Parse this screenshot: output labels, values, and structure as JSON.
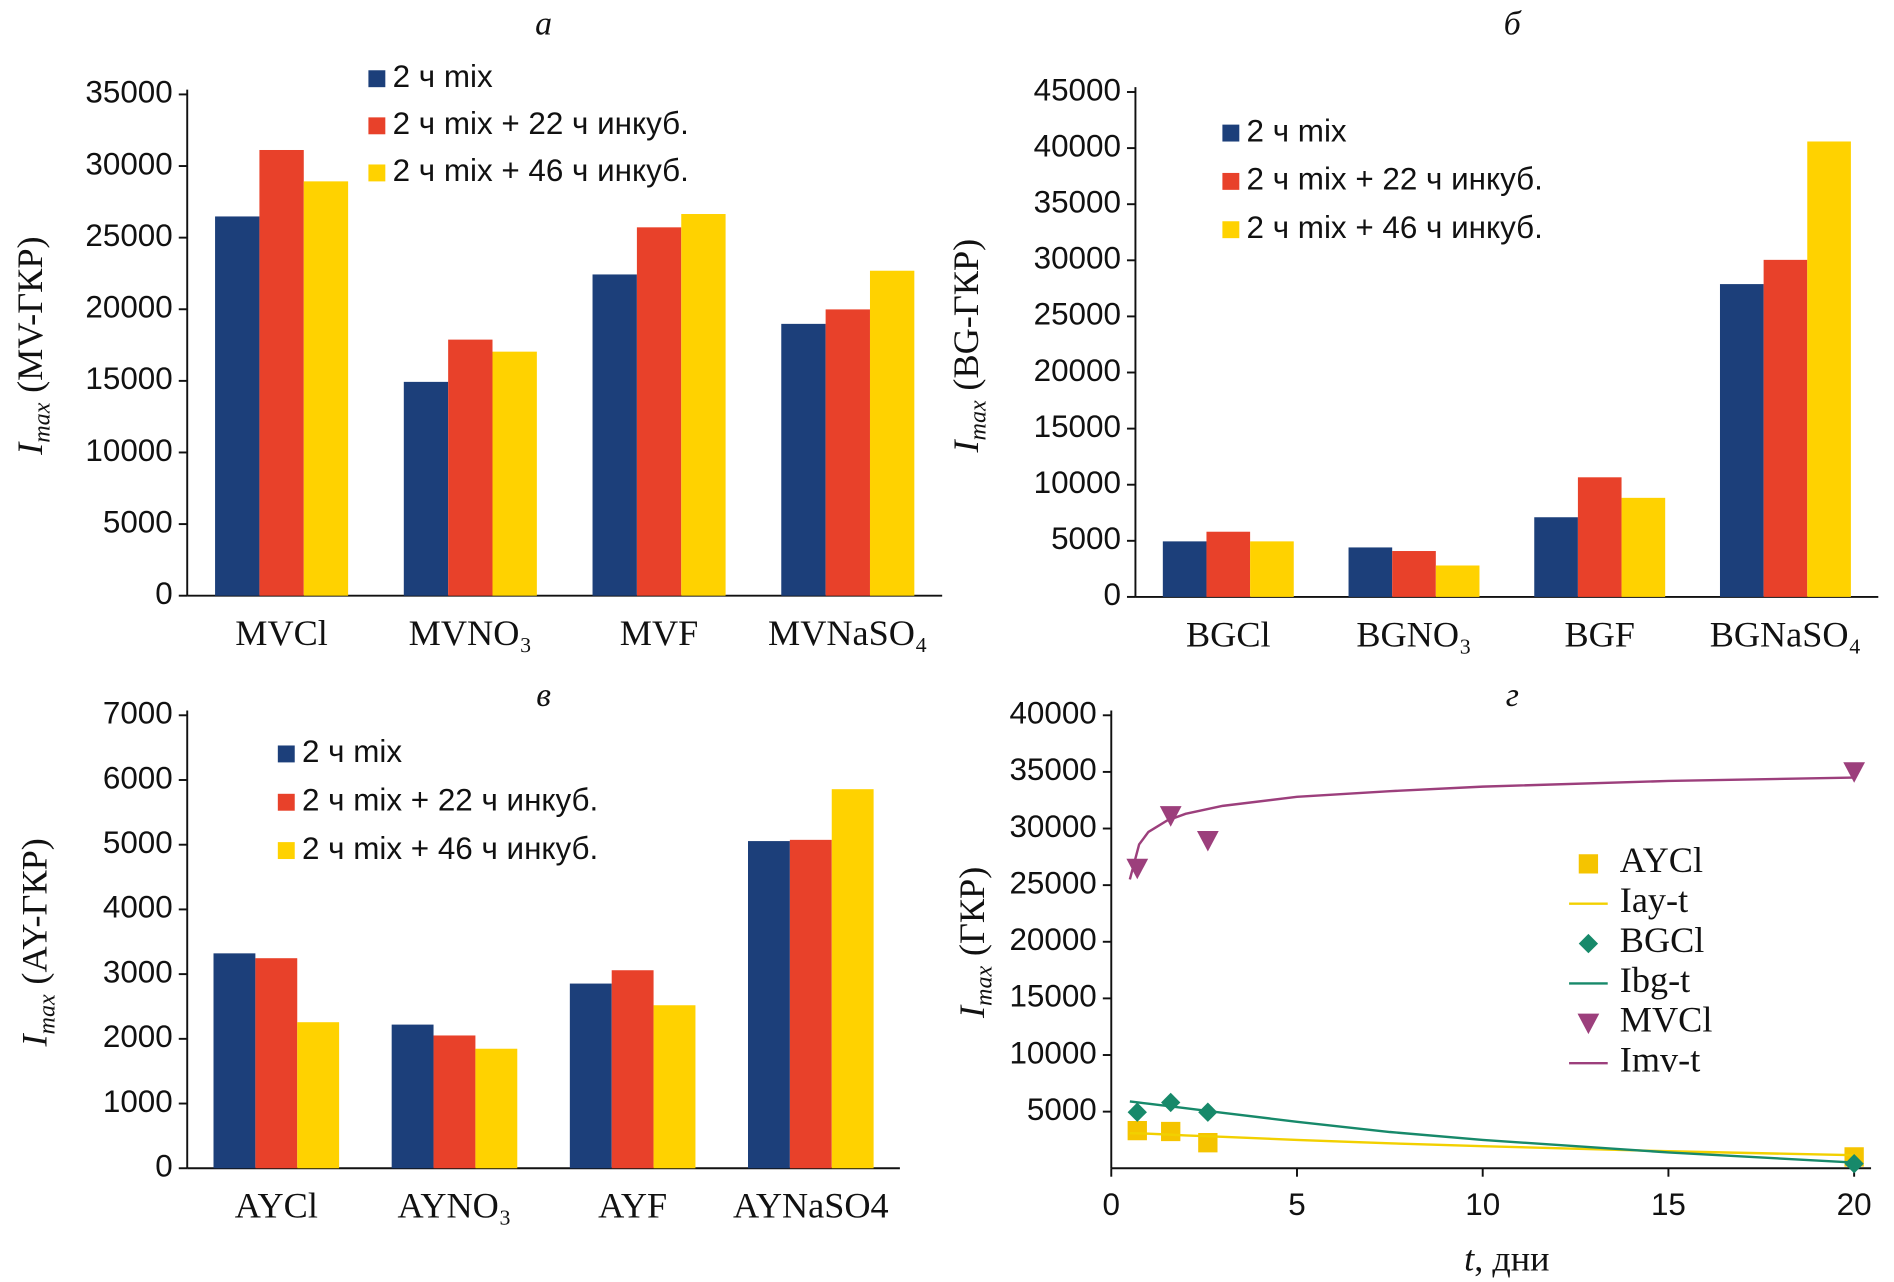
{
  "chart_data": [
    {
      "type": "bar",
      "title": "а",
      "ylabel": {
        "symbol": "I",
        "subscript": "max",
        "text": "(MV-ГКР)"
      },
      "categories": [
        "MVCl",
        "MVNO₃",
        "MVF",
        "MVNaSO₄"
      ],
      "series": [
        {
          "name": "2 ч mix",
          "color": "#1c3f7a",
          "values": [
            26480,
            14930,
            22430,
            18980
          ]
        },
        {
          "name": "2 ч mix + 22 ч инкуб.",
          "color": "#e8412a",
          "values": [
            31120,
            17880,
            25720,
            19990
          ]
        },
        {
          "name": "2 ч mix + 46 ч инкуб.",
          "color": "#ffd200",
          "values": [
            28930,
            17040,
            26650,
            22690
          ]
        }
      ],
      "ylim": [
        0,
        35000
      ],
      "yticks": [
        0,
        5000,
        10000,
        15000,
        20000,
        25000,
        30000,
        35000
      ]
    },
    {
      "type": "bar",
      "title": "б",
      "ylabel": {
        "symbol": "I",
        "subscript": "max",
        "text": "(BG-ГКР)"
      },
      "categories": [
        "BGCl",
        "BGNO₃",
        "BGF",
        "BGNaSO₄"
      ],
      "series": [
        {
          "name": "2 ч mix",
          "color": "#1c3f7a",
          "values": [
            4950,
            4410,
            7100,
            27880
          ]
        },
        {
          "name": "2 ч mix + 22 ч инкуб.",
          "color": "#e8412a",
          "values": [
            5810,
            4090,
            10660,
            30040
          ]
        },
        {
          "name": "2 ч mix + 46 ч инкуб.",
          "color": "#ffd200",
          "values": [
            4950,
            2800,
            8830,
            40590
          ]
        }
      ],
      "ylim": [
        0,
        45000
      ],
      "yticks": [
        0,
        5000,
        10000,
        15000,
        20000,
        25000,
        30000,
        35000,
        40000,
        45000
      ]
    },
    {
      "type": "bar",
      "title": "в",
      "ylabel": {
        "symbol": "I",
        "subscript": "max",
        "text": "(AY-ГКР)"
      },
      "categories": [
        "AYCl",
        "AYNO₃",
        "AYF",
        "AYNaSO4"
      ],
      "series": [
        {
          "name": "2 ч mix",
          "color": "#1c3f7a",
          "values": [
            3321,
            2220,
            2854,
            5056
          ]
        },
        {
          "name": "2 ч mix + 22 ч инкуб.",
          "color": "#e8412a",
          "values": [
            3246,
            2052,
            3060,
            5075
          ]
        },
        {
          "name": "2 ч mix + 46 ч инкуб.",
          "color": "#ffd200",
          "values": [
            2257,
            1847,
            2519,
            5858
          ]
        }
      ],
      "ylim": [
        0,
        7000
      ],
      "yticks": [
        0,
        1000,
        2000,
        3000,
        4000,
        5000,
        6000,
        7000
      ]
    },
    {
      "type": "scatter",
      "title": "г",
      "ylabel": {
        "symbol": "I",
        "subscript": "max",
        "text": "(ГКР)"
      },
      "xlabel": {
        "symbol": "t",
        "text": ", дни"
      },
      "series": [
        {
          "name": "AYCl",
          "type": "scatter",
          "marker": "square",
          "color": "#f5c400",
          "x": [
            0.7,
            1.6,
            2.6,
            20
          ],
          "values": [
            3321,
            3246,
            2257,
            1000
          ]
        },
        {
          "name": "Iay-t",
          "type": "line",
          "color": "#f2d000",
          "x": [
            0.5,
            0.75,
            1,
            1.5,
            2,
            3,
            5,
            7.5,
            10,
            15,
            20
          ],
          "values": [
            3100,
            3080,
            3050,
            2980,
            2900,
            2780,
            2500,
            2200,
            1950,
            1500,
            1150
          ]
        },
        {
          "name": "BGCl",
          "type": "scatter",
          "marker": "diamond",
          "color": "#17896a",
          "x": [
            0.7,
            1.6,
            2.6,
            20
          ],
          "values": [
            4950,
            5810,
            4950,
            400
          ]
        },
        {
          "name": "Ibg-t",
          "type": "line",
          "color": "#17896a",
          "x": [
            0.5,
            0.75,
            1,
            1.5,
            2,
            3,
            5,
            7.5,
            10,
            15,
            20
          ],
          "values": [
            5900,
            5800,
            5700,
            5500,
            5300,
            4900,
            4100,
            3200,
            2500,
            1400,
            500
          ]
        },
        {
          "name": "MVCl",
          "type": "scatter",
          "marker": "triangle-down",
          "color": "#9c3f7c",
          "x": [
            0.7,
            1.6,
            2.6,
            20
          ],
          "values": [
            26480,
            31120,
            28930,
            35000
          ]
        },
        {
          "name": "Imv-t",
          "type": "line",
          "color": "#9c3f7c",
          "x": [
            0.5,
            0.75,
            1,
            1.5,
            2,
            3,
            5,
            7.5,
            10,
            15,
            20
          ],
          "values": [
            25500,
            28600,
            29700,
            30700,
            31300,
            32000,
            32800,
            33300,
            33700,
            34200,
            34500
          ]
        }
      ],
      "xlim": [
        0,
        20
      ],
      "xticks": [
        0,
        5,
        10,
        15,
        20
      ],
      "ylim": [
        0,
        40000
      ],
      "yticks": [
        5000,
        10000,
        15000,
        20000,
        25000,
        30000,
        35000,
        40000
      ]
    }
  ]
}
